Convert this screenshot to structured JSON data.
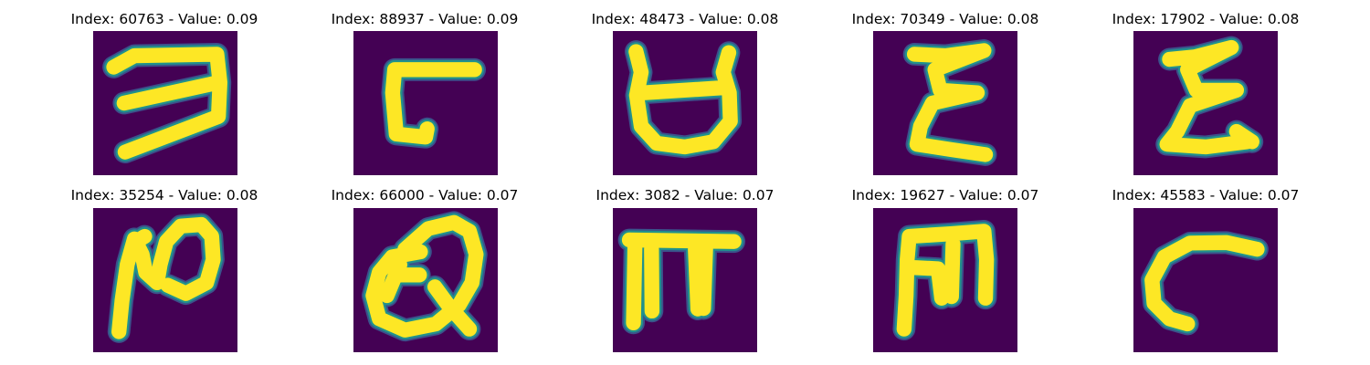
{
  "figure": {
    "background": "#440154",
    "stroke_core": "#FDE725",
    "stroke_edge": "#21918C",
    "stroke_halo": "#3B528B",
    "panels": [
      {
        "index": "60763",
        "value": "0.09",
        "title": "Index: 60763 - Value: 0.09"
      },
      {
        "index": "88937",
        "value": "0.09",
        "title": "Index: 88937 - Value: 0.09"
      },
      {
        "index": "48473",
        "value": "0.08",
        "title": "Index: 48473 - Value: 0.08"
      },
      {
        "index": "70349",
        "value": "0.08",
        "title": "Index: 70349 - Value: 0.08"
      },
      {
        "index": "17902",
        "value": "0.08",
        "title": "Index: 17902 - Value: 0.08"
      },
      {
        "index": "35254",
        "value": "0.08",
        "title": "Index: 35254 - Value: 0.08"
      },
      {
        "index": "66000",
        "value": "0.07",
        "title": "Index: 66000 - Value: 0.07"
      },
      {
        "index": "3082",
        "value": "0.07",
        "title": "Index: 3082 - Value: 0.07"
      },
      {
        "index": "19627",
        "value": "0.07",
        "title": "Index: 19627 - Value: 0.07"
      },
      {
        "index": "45583",
        "value": "0.07",
        "title": "Index: 45583 - Value: 0.07"
      }
    ]
  }
}
